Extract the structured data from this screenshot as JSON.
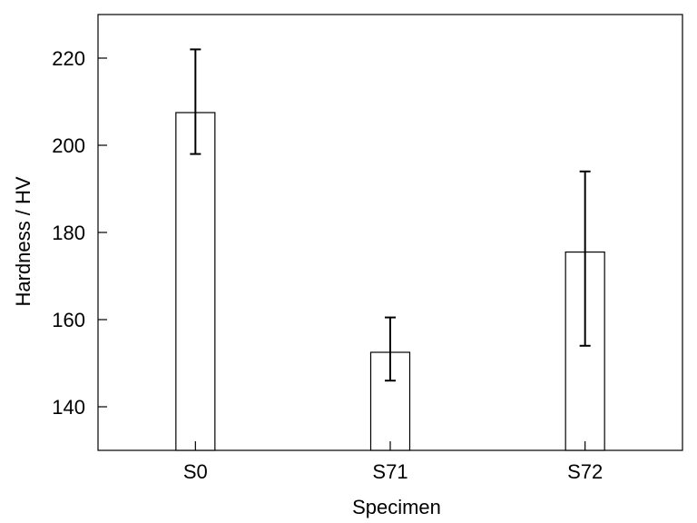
{
  "chart_data": {
    "type": "bar",
    "categories": [
      "S0",
      "S71",
      "S72"
    ],
    "values": [
      207.5,
      152.5,
      175.5
    ],
    "error_low": [
      198,
      146,
      154
    ],
    "error_high": [
      222,
      160.5,
      194
    ],
    "xlabel": "Specimen",
    "ylabel": "Hardness / HV",
    "ylim": [
      130,
      230
    ],
    "yticks": [
      140,
      160,
      180,
      200,
      220
    ],
    "grid": false,
    "legend": "none",
    "bar_fill": "#ffffff",
    "bar_stroke": "#000000"
  }
}
